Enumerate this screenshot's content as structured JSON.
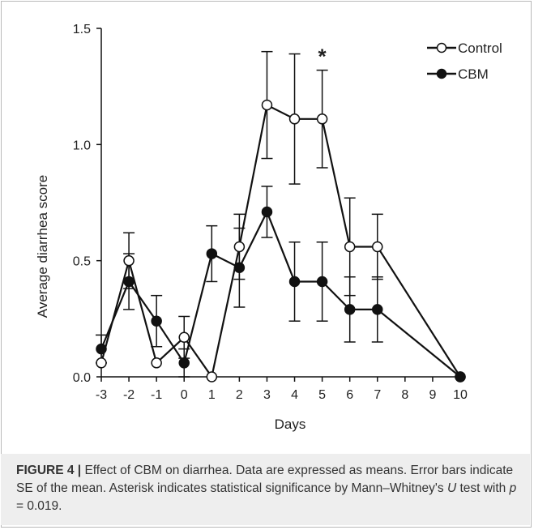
{
  "chart_data": {
    "type": "line",
    "title": "",
    "xlabel": "Days",
    "ylabel": "Average diarrhea score",
    "x_categories": [
      "-3",
      "-2",
      "-1",
      "0",
      "1",
      "2",
      "3",
      "4",
      "5",
      "6",
      "7",
      "8",
      "9",
      "10"
    ],
    "ylim": [
      0,
      1.5
    ],
    "y_ticks": [
      "0.0",
      "0.5",
      "1.0",
      "1.5"
    ],
    "grid": false,
    "legend_position": "top-right",
    "annotations": [
      {
        "text": "*",
        "x": "5"
      }
    ],
    "series": [
      {
        "name": "Control",
        "marker": "open-circle",
        "x": [
          "-3",
          "-2",
          "-1",
          "0",
          "1",
          "2",
          "3",
          "4",
          "5",
          "6",
          "7",
          "10"
        ],
        "y": [
          0.06,
          0.5,
          0.06,
          0.17,
          0.0,
          0.56,
          1.17,
          1.11,
          1.11,
          0.56,
          0.56,
          0.0
        ],
        "error": [
          0.0,
          0.12,
          0.0,
          0.09,
          0.0,
          0.14,
          0.23,
          0.28,
          0.21,
          0.21,
          0.14,
          0.0
        ]
      },
      {
        "name": "CBM",
        "marker": "filled-circle",
        "x": [
          "-3",
          "-2",
          "-1",
          "0",
          "1",
          "2",
          "3",
          "4",
          "5",
          "6",
          "7",
          "10"
        ],
        "y": [
          0.12,
          0.41,
          0.24,
          0.06,
          0.53,
          0.47,
          0.71,
          0.41,
          0.41,
          0.29,
          0.29,
          0.0
        ],
        "error": [
          0.06,
          0.12,
          0.11,
          0.06,
          0.12,
          0.17,
          0.11,
          0.17,
          0.17,
          0.14,
          0.14,
          0.0
        ]
      }
    ]
  },
  "caption": {
    "label": "FIGURE 4 |",
    "part1": " Effect of CBM on diarrhea. Data are expressed as means. Error bars indicate SE of the mean. Asterisk indicates statistical significance by Mann–Whitney's ",
    "italic_u": "U",
    "part2": " test with ",
    "italic_p": "p",
    "part3": " = 0.019."
  },
  "colors": {
    "line": "#111111",
    "caption_bg": "#eeeeee",
    "border": "#b9b9b9"
  }
}
